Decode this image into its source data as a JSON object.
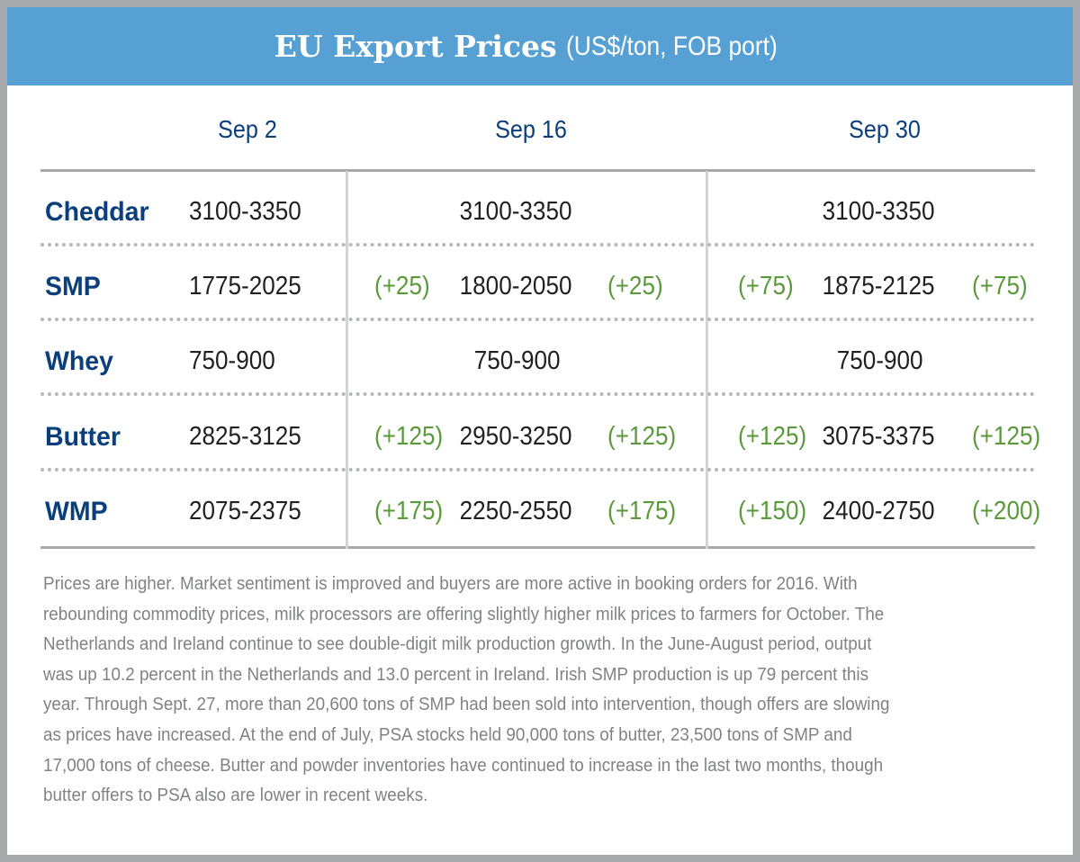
{
  "title": {
    "main": "EU Export Prices",
    "sub": "(US$/ton, FOB port)"
  },
  "colors": {
    "header_bg": "#56a0d3",
    "label": "#0b3f7c",
    "change": "#5a9a3a",
    "text": "#231f20",
    "note": "#808285"
  },
  "chart_data": {
    "type": "table",
    "columns": [
      "Sep 2",
      "Sep 16",
      "Sep 30"
    ],
    "rows": [
      {
        "product": "Cheddar",
        "sep2": "3100-3350",
        "sep16": {
          "low_change": "",
          "range": "3100-3350",
          "high_change": ""
        },
        "sep30": {
          "low_change": "",
          "range": "3100-3350",
          "high_change": ""
        }
      },
      {
        "product": "SMP",
        "sep2": "1775-2025",
        "sep16": {
          "low_change": "(+25)",
          "range": "1800-2050",
          "high_change": "(+25)"
        },
        "sep30": {
          "low_change": "(+75)",
          "range": "1875-2125",
          "high_change": "(+75)"
        }
      },
      {
        "product": "Whey",
        "sep2": "750-900",
        "sep16": {
          "low_change": "",
          "range": "750-900",
          "high_change": ""
        },
        "sep30": {
          "low_change": "",
          "range": "750-900",
          "high_change": ""
        }
      },
      {
        "product": "Butter",
        "sep2": "2825-3125",
        "sep16": {
          "low_change": "(+125)",
          "range": "2950-3250",
          "high_change": "(+125)"
        },
        "sep30": {
          "low_change": "(+125)",
          "range": "3075-3375",
          "high_change": "(+125)"
        }
      },
      {
        "product": "WMP",
        "sep2": "2075-2375",
        "sep16": {
          "low_change": "(+175)",
          "range": "2250-2550",
          "high_change": "(+175)"
        },
        "sep30": {
          "low_change": "(+150)",
          "range": "2400-2750",
          "high_change": "(+200)"
        }
      }
    ]
  },
  "note_lines": [
    "Prices are higher. Market sentiment is improved and buyers are more active in booking orders for 2016. With",
    "rebounding commodity prices, milk processors are offering slightly higher milk prices to farmers for October. The",
    "Netherlands and Ireland continue to see double-digit milk production growth. In the June-August period, output",
    "was up 10.2 percent in the Netherlands and 13.0 percent in Ireland. Irish SMP production is up 79 percent this",
    "year. Through Sept. 27, more than 20,600 tons of SMP had been sold into intervention, though offers are slowing",
    "as prices have increased. At the end of July, PSA stocks held 90,000 tons of butter, 23,500 tons of SMP and",
    "17,000 tons of cheese. Butter and powder inventories have continued to increase in the last two months, though",
    "butter offers to PSA also are lower in recent weeks."
  ]
}
